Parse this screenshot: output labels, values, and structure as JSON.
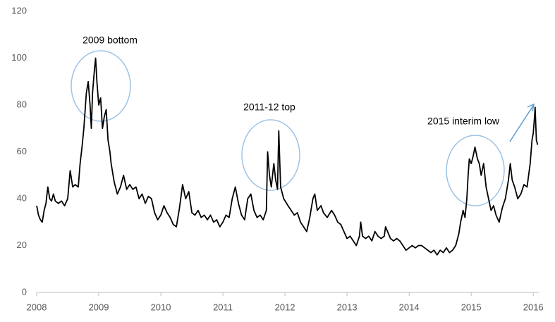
{
  "chart_data": {
    "type": "line",
    "annotations": [
      "2009 bottom",
      "2011-12 top",
      "2015 interim low"
    ],
    "xlim": [
      2008,
      2016.1
    ],
    "xticks": [
      2008,
      2009,
      2010,
      2011,
      2012,
      2013,
      2014,
      2015,
      2016
    ],
    "ylim": [
      0,
      120
    ],
    "yticks": [
      0,
      20,
      40,
      60,
      80,
      100,
      120
    ],
    "grid": false,
    "series": [
      {
        "color": "#000000",
        "x": [
          2008.0,
          2008.03,
          2008.06,
          2008.09,
          2008.12,
          2008.15,
          2008.18,
          2008.21,
          2008.24,
          2008.27,
          2008.3,
          2008.35,
          2008.4,
          2008.45,
          2008.5,
          2008.54,
          2008.58,
          2008.62,
          2008.67,
          2008.7,
          2008.73,
          2008.76,
          2008.8,
          2008.83,
          2008.86,
          2008.88,
          2008.9,
          2008.93,
          2008.95,
          2008.97,
          2009.0,
          2009.03,
          2009.06,
          2009.09,
          2009.12,
          2009.15,
          2009.18,
          2009.2,
          2009.25,
          2009.3,
          2009.35,
          2009.4,
          2009.45,
          2009.5,
          2009.55,
          2009.6,
          2009.65,
          2009.7,
          2009.75,
          2009.8,
          2009.85,
          2009.9,
          2009.95,
          2010.0,
          2010.05,
          2010.1,
          2010.15,
          2010.2,
          2010.25,
          2010.3,
          2010.35,
          2010.4,
          2010.45,
          2010.5,
          2010.55,
          2010.6,
          2010.65,
          2010.7,
          2010.75,
          2010.8,
          2010.85,
          2010.9,
          2010.95,
          2011.0,
          2011.05,
          2011.1,
          2011.15,
          2011.2,
          2011.25,
          2011.3,
          2011.35,
          2011.4,
          2011.45,
          2011.5,
          2011.55,
          2011.6,
          2011.65,
          2011.7,
          2011.72,
          2011.75,
          2011.78,
          2011.82,
          2011.85,
          2011.88,
          2011.9,
          2011.93,
          2011.98,
          2012.05,
          2012.1,
          2012.15,
          2012.2,
          2012.25,
          2012.3,
          2012.35,
          2012.4,
          2012.45,
          2012.48,
          2012.52,
          2012.58,
          2012.62,
          2012.68,
          2012.75,
          2012.8,
          2012.85,
          2012.9,
          2012.95,
          2013.0,
          2013.05,
          2013.1,
          2013.15,
          2013.2,
          2013.22,
          2013.25,
          2013.3,
          2013.35,
          2013.4,
          2013.45,
          2013.5,
          2013.55,
          2013.6,
          2013.62,
          2013.7,
          2013.75,
          2013.8,
          2013.85,
          2013.9,
          2013.95,
          2014.0,
          2014.05,
          2014.1,
          2014.15,
          2014.2,
          2014.25,
          2014.3,
          2014.35,
          2014.4,
          2014.45,
          2014.5,
          2014.55,
          2014.6,
          2014.65,
          2014.7,
          2014.75,
          2014.8,
          2014.83,
          2014.87,
          2014.9,
          2014.93,
          2014.95,
          2014.97,
          2015.0,
          2015.03,
          2015.06,
          2015.1,
          2015.13,
          2015.16,
          2015.2,
          2015.24,
          2015.28,
          2015.32,
          2015.36,
          2015.4,
          2015.45,
          2015.5,
          2015.55,
          2015.6,
          2015.63,
          2015.66,
          2015.7,
          2015.75,
          2015.8,
          2015.85,
          2015.9,
          2015.95,
          2015.98,
          2016.0,
          2016.02,
          2016.03,
          2016.05,
          2016.07
        ],
        "values": [
          37,
          33,
          31,
          30,
          35,
          38,
          45,
          40,
          39,
          42,
          39,
          38,
          39,
          37,
          40,
          52,
          45,
          46,
          45,
          55,
          62,
          70,
          85,
          90,
          80,
          70,
          85,
          95,
          100,
          90,
          80,
          83,
          70,
          75,
          78,
          65,
          60,
          55,
          47,
          42,
          45,
          50,
          44,
          46,
          44,
          45,
          40,
          42,
          38,
          41,
          40,
          34,
          31,
          33,
          37,
          34,
          32,
          29,
          28,
          36,
          46,
          40,
          43,
          34,
          33,
          35,
          32,
          33,
          31,
          33,
          30,
          31,
          28,
          30,
          33,
          32,
          40,
          45,
          38,
          33,
          31,
          40,
          42,
          35,
          32,
          33,
          31,
          35,
          60,
          50,
          45,
          55,
          48,
          44,
          69,
          45,
          40,
          37,
          35,
          33,
          34,
          30,
          28,
          26,
          32,
          40,
          42,
          35,
          37,
          34,
          32,
          35,
          33,
          30,
          29,
          26,
          23,
          24,
          22,
          20,
          24,
          30,
          24,
          23,
          24,
          22,
          26,
          24,
          23,
          24,
          28,
          23,
          22,
          23,
          22,
          20,
          18,
          19,
          20,
          19,
          20,
          20,
          19,
          18,
          17,
          18,
          16,
          18,
          17,
          19,
          17,
          18,
          20,
          25,
          30,
          35,
          32,
          40,
          50,
          57,
          55,
          58,
          62,
          57,
          55,
          50,
          55,
          45,
          40,
          35,
          37,
          33,
          30,
          36,
          40,
          48,
          55,
          48,
          45,
          40,
          42,
          46,
          45,
          55,
          65,
          68,
          75,
          79,
          65,
          63
        ]
      }
    ]
  }
}
